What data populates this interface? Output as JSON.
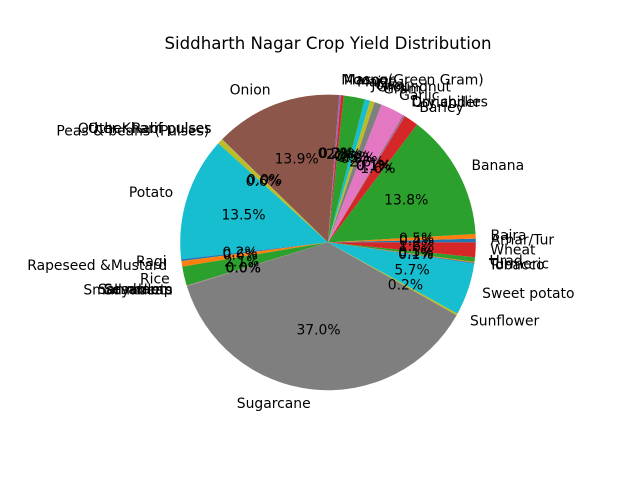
{
  "chart_data": {
    "type": "pie",
    "title": "Siddharth Nagar Crop Yield Distribution",
    "categories": [
      "Arhar/Tur",
      "Bajra",
      "Banana",
      "Barley",
      "Coriander",
      "Dry chillies",
      "Garlic",
      "Gram",
      "Groundnut",
      "Jowar",
      "Maize",
      "Masoor",
      "Moong(Green Gram)",
      "Onion",
      "Other Kharif pulses",
      "Other Rabi pulses",
      "Peas & beans (Pulses)",
      "Potato",
      "Ragi",
      "Rapeseed &Mustard",
      "Rice",
      "Sannhamp",
      "Sesamum",
      "Small millets",
      "Soyabean",
      "Sugarcane",
      "Sunflower",
      "Sweet potato",
      "Tobacco",
      "Turmeric",
      "Urad",
      "Wheat"
    ],
    "values": [
      0.4,
      0.5,
      13.8,
      1.6,
      0.1,
      0.1,
      2.6,
      0.8,
      0.5,
      0.6,
      2.3,
      0.3,
      0.2,
      13.9,
      0.02,
      0.03,
      0.57,
      13.5,
      0.2,
      0.6,
      2.1,
      0.02,
      0.02,
      0.02,
      0.02,
      37.0,
      0.2,
      5.7,
      0.1,
      0.1,
      0.5,
      1.6
    ],
    "colors": [
      "#1f77b4",
      "#ff7f0e",
      "#2ca02c",
      "#d62728",
      "#9467bd",
      "#8c564b",
      "#e377c2",
      "#7f7f7f",
      "#bcbd22",
      "#17becf",
      "#2ca02c",
      "#d62728",
      "#9467bd",
      "#8c564b",
      "#e377c2",
      "#7f7f7f",
      "#bcbd22",
      "#17becf",
      "#1f77b4",
      "#ff7f0e",
      "#2ca02c",
      "#d62728",
      "#9467bd",
      "#8c564b",
      "#e377c2",
      "#7f7f7f",
      "#bcbd22",
      "#17becf",
      "#1f77b4",
      "#ff7f0e",
      "#2ca02c",
      "#d62728"
    ],
    "legend": "none"
  }
}
